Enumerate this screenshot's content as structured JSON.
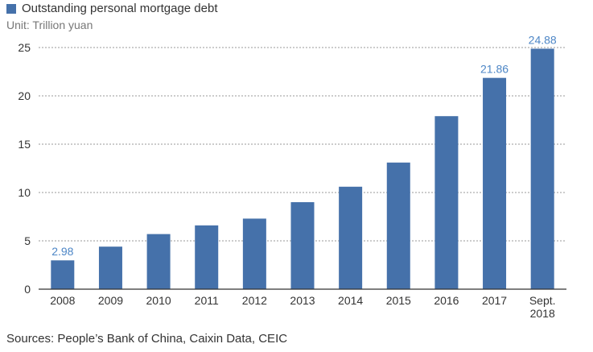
{
  "chart_data": {
    "type": "bar",
    "legend": "Outstanding personal mortgage debt",
    "unit": "Unit: Trillion yuan",
    "source": "Sources: People’s Bank of China, Caixin Data, CEIC",
    "categories": [
      "2008",
      "2009",
      "2010",
      "2011",
      "2012",
      "2013",
      "2014",
      "2015",
      "2016",
      "2017",
      [
        "Sept.",
        "2018"
      ]
    ],
    "values": [
      2.98,
      4.4,
      5.7,
      6.6,
      7.3,
      9.0,
      10.6,
      13.1,
      17.9,
      21.86,
      24.88
    ],
    "data_labels": [
      "2.98",
      "",
      "",
      "",
      "",
      "",
      "",
      "",
      "",
      "21.86",
      "24.88"
    ],
    "yticks": [
      0,
      5,
      10,
      15,
      20,
      25
    ],
    "ylim": [
      0,
      25
    ],
    "grid": true,
    "bar_color": "#4571aa",
    "label_color": "#4d86c6"
  }
}
